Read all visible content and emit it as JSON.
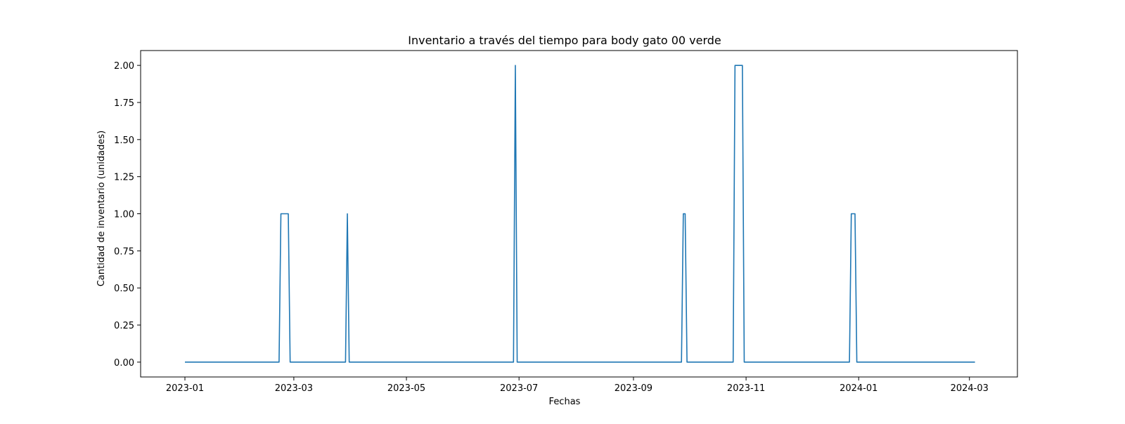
{
  "chart_data": {
    "type": "line",
    "title": "Inventario a través del tiempo para body gato 00 verde",
    "xlabel": "Fechas",
    "ylabel": "Cantidad de inventario (unidades)",
    "xlim": [
      "2022-12-08",
      "2024-03-27"
    ],
    "ylim": [
      -0.1,
      2.1
    ],
    "x_ticks": [
      "2023-01",
      "2023-03",
      "2023-05",
      "2023-07",
      "2023-09",
      "2023-11",
      "2024-01",
      "2024-03"
    ],
    "y_ticks": [
      "0.00",
      "0.25",
      "0.50",
      "0.75",
      "1.00",
      "1.25",
      "1.50",
      "1.75",
      "2.00"
    ],
    "grid": false,
    "color": "#1f77b4",
    "series": [
      {
        "x": [
          "2023-01-01",
          "2023-02-21",
          "2023-02-22",
          "2023-02-26",
          "2023-02-27",
          "2023-03-29",
          "2023-03-30",
          "2023-03-31",
          "2023-06-28",
          "2023-06-29",
          "2023-06-30",
          "2023-09-27",
          "2023-09-28",
          "2023-09-29",
          "2023-09-30",
          "2023-10-25",
          "2023-10-26",
          "2023-10-30",
          "2023-10-31",
          "2023-12-27",
          "2023-12-28",
          "2023-12-30",
          "2023-12-31",
          "2024-03-04"
        ],
        "y": [
          0,
          0,
          1,
          1,
          0,
          0,
          1,
          0,
          0,
          2,
          0,
          0,
          1,
          1,
          0,
          0,
          2,
          2,
          0,
          0,
          1,
          1,
          0,
          0
        ]
      }
    ]
  }
}
